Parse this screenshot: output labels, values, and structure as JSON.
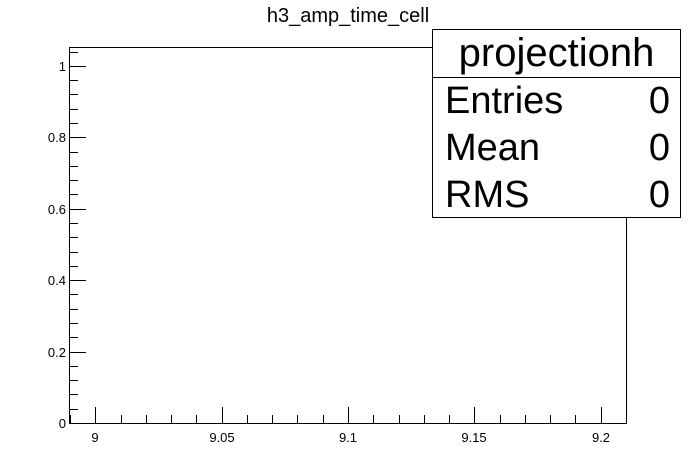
{
  "chart_data": {
    "type": "bar",
    "title": "h3_amp_time_cell",
    "xlabel": "",
    "ylabel": "",
    "xlim": [
      8.99,
      9.21
    ],
    "ylim": [
      0,
      1.05
    ],
    "x_ticks": [
      "9",
      "9.05",
      "9.1",
      "9.15",
      "9.2"
    ],
    "x_tick_values": [
      9,
      9.05,
      9.1,
      9.15,
      9.2
    ],
    "y_ticks": [
      "0",
      "0.2",
      "0.4",
      "0.6",
      "0.8",
      "1"
    ],
    "y_tick_values": [
      0,
      0.2,
      0.4,
      0.6,
      0.8,
      1
    ],
    "x": [],
    "values": [],
    "grid": false,
    "legend": "none"
  },
  "stats": {
    "title": "projectionh",
    "rows": [
      {
        "label": "Entries",
        "value": "0"
      },
      {
        "label": "Mean",
        "value": "0"
      },
      {
        "label": "RMS",
        "value": "0"
      }
    ],
    "placement": "top-right"
  }
}
